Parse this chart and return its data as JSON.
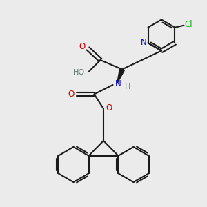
{
  "bg_color": "#ebebeb",
  "bond_color": "#1a1a1a",
  "n_color": "#0000cc",
  "o_color": "#cc0000",
  "cl_color": "#00bb00",
  "h_color": "#607070",
  "linewidth": 1.5,
  "figsize": [
    3.0,
    3.0
  ],
  "dpi": 100,
  "xlim": [
    0,
    10
  ],
  "ylim": [
    0,
    10
  ]
}
